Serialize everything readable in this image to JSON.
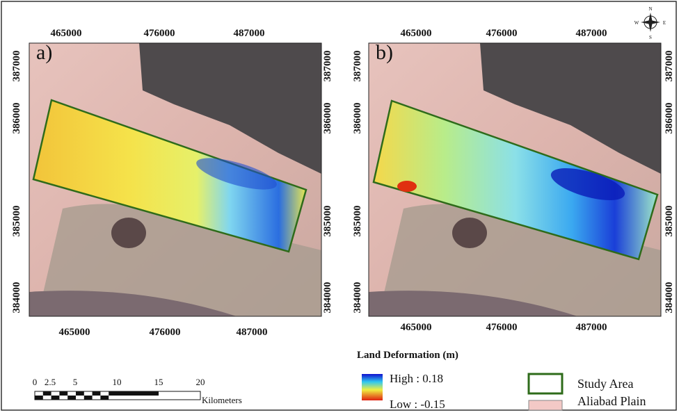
{
  "panels": [
    {
      "label": "a)",
      "x_labels_top": [
        "465000",
        "476000",
        "487000"
      ],
      "x_labels_bottom": [
        "465000",
        "476000",
        "487000"
      ],
      "y_labels_left": [
        "387000",
        "386000",
        "385000",
        "384000"
      ],
      "y_labels_right": [
        "387000",
        "386000",
        "385000",
        "384000"
      ]
    },
    {
      "label": "b)",
      "x_labels_top": [
        "465000",
        "476000",
        "487000"
      ],
      "x_labels_bottom": [
        "465000",
        "476000",
        "487000"
      ],
      "y_labels_left": [
        "387000",
        "386000",
        "385000",
        "384000"
      ],
      "y_labels_right": [
        "387000",
        "386000",
        "385000",
        "384000"
      ]
    }
  ],
  "legend": {
    "title": "Land Deformation (m)",
    "high": "High : 0.18",
    "low": "Low : -0.15",
    "items": [
      "Study Area",
      "Aliabad Plain"
    ]
  },
  "scale_bar": {
    "ticks": [
      "0",
      "2.5",
      "5",
      "10",
      "15",
      "20"
    ],
    "unit": "Kilometers"
  },
  "compass": {
    "n": "N",
    "s": "S",
    "e": "E",
    "w": "W"
  }
}
